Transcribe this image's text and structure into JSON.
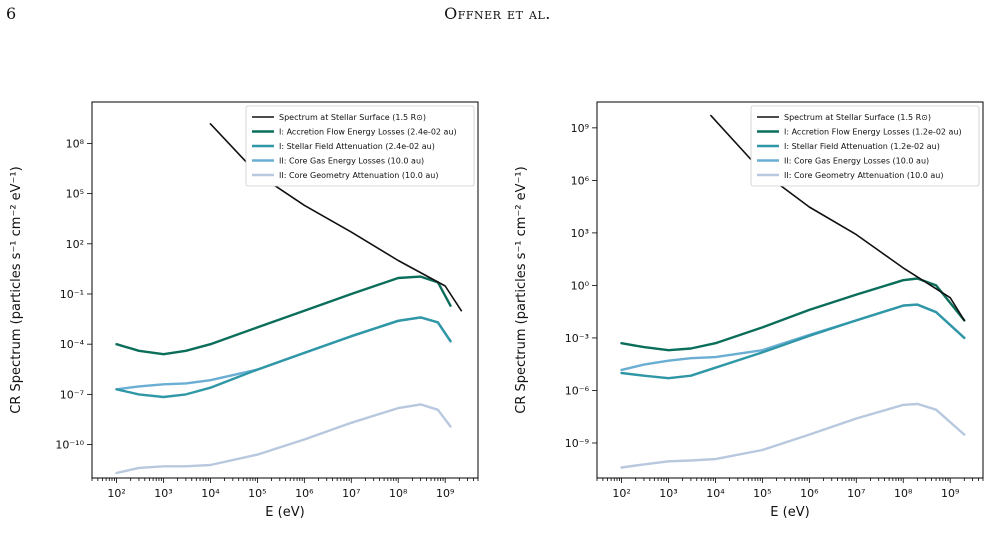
{
  "header": {
    "page_number": "6",
    "running_head": "Offner et al."
  },
  "colors": {
    "surface": "#111111",
    "accretion_losses": "#0b6e5a",
    "stellar_attenuation": "#2f97a6",
    "core_gas_losses": "#6aaed4",
    "core_geometry": "#b8c8de"
  },
  "chart_data": [
    {
      "type": "line",
      "title": "",
      "xlabel": "E (eV)",
      "ylabel": "CR Spectrum (particles s⁻¹ cm⁻² eV⁻¹)",
      "x_scale": "log",
      "y_scale": "log",
      "xlim": [
        30,
        5000000000.0
      ],
      "ylim": [
        1e-12,
        30000000000.0
      ],
      "x_ticks": [
        100,
        1000,
        10000,
        100000,
        1000000,
        10000000,
        100000000,
        1000000000
      ],
      "x_tick_labels": [
        "10²",
        "10³",
        "10⁴",
        "10⁵",
        "10⁶",
        "10⁷",
        "10⁸",
        "10⁹"
      ],
      "y_ticks": [
        1e-10,
        1e-07,
        0.0001,
        0.1,
        100,
        100000,
        100000000
      ],
      "y_tick_labels": [
        "10⁻¹⁰",
        "10⁻⁷",
        "10⁻⁴",
        "10⁻¹",
        "10²",
        "10⁵",
        "10⁸"
      ],
      "legend_position": "top-right",
      "series": [
        {
          "name": "Spectrum at Stellar Surface (1.5 R⊙)",
          "color": "#111111",
          "width": 1.6,
          "x": [
            10000,
            100000,
            1000000,
            10000000,
            100000000,
            1000000000,
            2200000000
          ],
          "y": [
            1500000000.0,
            1500000.0,
            20000,
            500,
            10,
            0.3,
            0.01
          ]
        },
        {
          "name": "I: Accretion Flow Energy Losses (2.4e-02 au)",
          "color": "#0b6e5a",
          "width": 2.4,
          "x": [
            100,
            300,
            1000,
            3000,
            10000,
            100000,
            1000000,
            10000000,
            100000000,
            300000000,
            700000000,
            1300000000
          ],
          "y": [
            0.0001,
            4e-05,
            2.5e-05,
            4e-05,
            0.0001,
            0.001,
            0.01,
            0.1,
            0.9,
            1.1,
            0.5,
            0.02
          ]
        },
        {
          "name": "I: Stellar Field Attenuation (2.4e-02 au)",
          "color": "#2f97a6",
          "width": 2.4,
          "x": [
            100,
            300,
            1000,
            3000,
            10000,
            100000,
            1000000,
            10000000,
            100000000,
            300000000,
            700000000,
            1300000000
          ],
          "y": [
            2e-07,
            1e-07,
            7e-08,
            1e-07,
            2.5e-07,
            3e-06,
            3e-05,
            0.0003,
            0.0025,
            0.004,
            0.002,
            0.00015
          ]
        },
        {
          "name": "II: Core Gas Energy Losses (10.0 au)",
          "color": "#6aaed4",
          "width": 2.4,
          "x": [
            100,
            300,
            1000,
            3000,
            10000,
            100000,
            1000000,
            10000000,
            100000000,
            300000000,
            700000000,
            1300000000
          ],
          "y": [
            2e-07,
            3e-07,
            4e-07,
            4.5e-07,
            7e-07,
            3e-06,
            3e-05,
            0.0003,
            0.0025,
            0.004,
            0.002,
            0.00015
          ]
        },
        {
          "name": "II: Core Geometry Attenuation (10.0 au)",
          "color": "#b8c8de",
          "width": 2.4,
          "x": [
            100,
            300,
            1000,
            3000,
            10000,
            100000,
            1000000,
            10000000,
            100000000,
            300000000,
            700000000,
            1300000000
          ],
          "y": [
            2e-12,
            4e-12,
            5e-12,
            5e-12,
            6e-12,
            2.5e-11,
            2e-10,
            2e-09,
            1.5e-08,
            2.5e-08,
            1.2e-08,
            1.2e-09
          ]
        }
      ]
    },
    {
      "type": "line",
      "title": "",
      "xlabel": "E (eV)",
      "ylabel": "CR Spectrum (particles s⁻¹ cm⁻² eV⁻¹)",
      "x_scale": "log",
      "y_scale": "log",
      "xlim": [
        30,
        5000000000.0
      ],
      "ylim": [
        1e-11,
        30000000000.0
      ],
      "x_ticks": [
        100,
        1000,
        10000,
        100000,
        1000000,
        10000000,
        100000000,
        1000000000
      ],
      "x_tick_labels": [
        "10²",
        "10³",
        "10⁴",
        "10⁵",
        "10⁶",
        "10⁷",
        "10⁸",
        "10⁹"
      ],
      "y_ticks": [
        1e-09,
        1e-06,
        0.001,
        1,
        1000,
        1000000,
        1000000000
      ],
      "y_tick_labels": [
        "10⁻⁹",
        "10⁻⁶",
        "10⁻³",
        "10⁰",
        "10³",
        "10⁶",
        "10⁹"
      ],
      "legend_position": "top-right",
      "series": [
        {
          "name": "Spectrum at Stellar Surface (1.5 R⊙)",
          "color": "#111111",
          "width": 1.6,
          "x": [
            8000,
            100000,
            1000000,
            10000000,
            100000000,
            1000000000,
            2000000000
          ],
          "y": [
            5000000000.0,
            3000000.0,
            30000,
            800,
            10,
            0.2,
            0.01
          ]
        },
        {
          "name": "I: Accretion Flow Energy Losses (1.2e-02 au)",
          "color": "#0b6e5a",
          "width": 2.4,
          "x": [
            100,
            300,
            1000,
            3000,
            10000,
            100000,
            1000000,
            10000000,
            100000000,
            200000000,
            500000000,
            2000000000
          ],
          "y": [
            0.0005,
            0.0003,
            0.0002,
            0.00025,
            0.0005,
            0.004,
            0.04,
            0.3,
            2,
            2.5,
            1,
            0.01
          ]
        },
        {
          "name": "I: Stellar Field Attenuation (1.2e-02 au)",
          "color": "#2f97a6",
          "width": 2.4,
          "x": [
            100,
            300,
            1000,
            3000,
            10000,
            100000,
            1000000,
            10000000,
            100000000,
            200000000,
            500000000,
            2000000000
          ],
          "y": [
            1e-05,
            7e-06,
            5e-06,
            7e-06,
            2e-05,
            0.00015,
            0.0013,
            0.01,
            0.07,
            0.08,
            0.03,
            0.001
          ]
        },
        {
          "name": "II: Core Gas Energy Losses (10.0 au)",
          "color": "#6aaed4",
          "width": 2.4,
          "x": [
            100,
            300,
            1000,
            3000,
            10000,
            100000,
            1000000,
            10000000,
            100000000,
            200000000,
            500000000,
            2000000000
          ],
          "y": [
            1.5e-05,
            3e-05,
            5e-05,
            7e-05,
            8e-05,
            0.0002,
            0.0015,
            0.01,
            0.07,
            0.08,
            0.03,
            0.001
          ]
        },
        {
          "name": "II: Core Geometry Attenuation (10.0 au)",
          "color": "#b8c8de",
          "width": 2.4,
          "x": [
            100,
            300,
            1000,
            3000,
            10000,
            100000,
            1000000,
            10000000,
            100000000,
            200000000,
            500000000,
            2000000000
          ],
          "y": [
            4e-11,
            6e-11,
            9e-11,
            1e-10,
            1.2e-10,
            4e-10,
            3e-09,
            2.5e-08,
            1.5e-07,
            1.7e-07,
            8e-08,
            3e-09
          ]
        }
      ]
    }
  ]
}
